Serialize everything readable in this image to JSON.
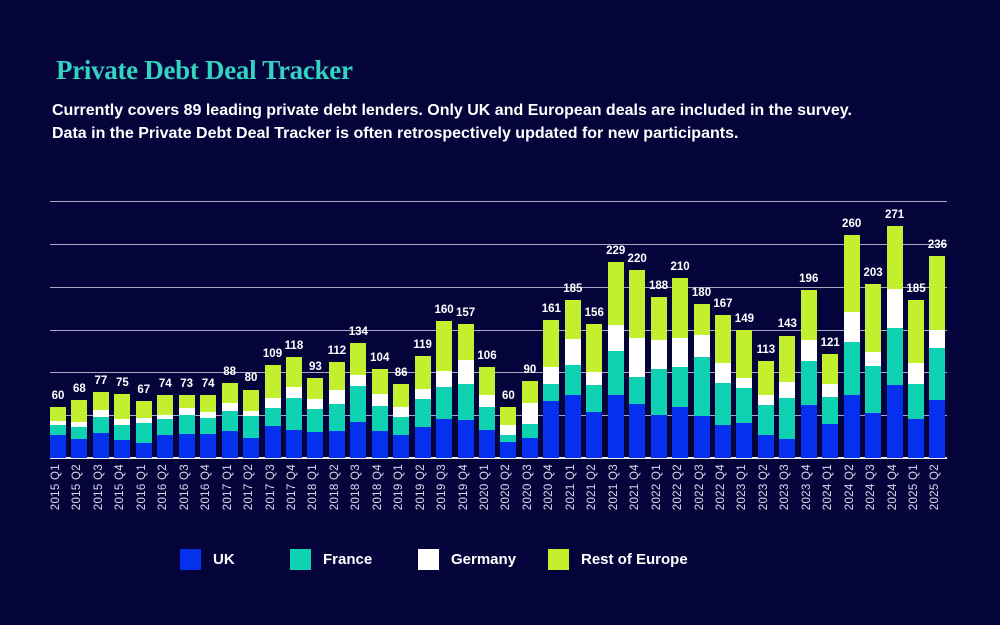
{
  "header": {
    "title": "Private Debt Deal Tracker",
    "subtitle_line1": "Currently covers 89 leading private debt lenders. Only UK and European deals are included in the survey.",
    "subtitle_line2": "Data in the Private Debt Deal Tracker is often retrospectively updated for new participants."
  },
  "colors": {
    "background": "#04043B",
    "title": "#32D4C0",
    "uk": "#0531EE",
    "france": "#0FD2B2",
    "germany": "#FFFFFF",
    "rest_of_europe": "#C3F02E",
    "gridline": "rgba(222,222,242,0.75)",
    "axis_label": "#D9D9EC",
    "value_label": "#FFFFFF"
  },
  "legend": {
    "items": [
      {
        "label": "UK",
        "color": "#0531EE"
      },
      {
        "label": "France",
        "color": "#0FD2B2"
      },
      {
        "label": "Germany",
        "color": "#FFFFFF"
      },
      {
        "label": "Rest of Europe",
        "color": "#C3F02E"
      }
    ]
  },
  "chart_data": {
    "type": "bar",
    "stacked": true,
    "title": "Private Debt Deal Tracker",
    "xlabel": "",
    "ylabel": "",
    "ylim": [
      0,
      300
    ],
    "gridline_step": 50,
    "grid": true,
    "y_axis_labels_visible": false,
    "legend_position": "bottom",
    "categories": [
      "2015 Q1",
      "2015 Q2",
      "2015 Q3",
      "2015 Q4",
      "2016 Q1",
      "2016 Q2",
      "2016 Q3",
      "2016 Q4",
      "2017 Q1",
      "2017 Q2",
      "2017 Q3",
      "2017 Q4",
      "2018 Q1",
      "2018 Q2",
      "2018 Q3",
      "2018 Q4",
      "2019 Q1",
      "2019 Q2",
      "2019 Q3",
      "2019 Q4",
      "2020 Q1",
      "2020 Q2",
      "2020 Q3",
      "2020 Q4",
      "2021 Q1",
      "2021 Q2",
      "2021 Q3",
      "2021 Q4",
      "2022 Q1",
      "2022 Q2",
      "2022 Q3",
      "2022 Q4",
      "2023 Q1",
      "2023 Q2",
      "2023 Q3",
      "2023 Q4",
      "2024 Q1",
      "2024 Q2",
      "2024 Q3",
      "2024 Q4",
      "2025 Q1",
      "2025 Q2"
    ],
    "totals": [
      60,
      68,
      77,
      75,
      67,
      74,
      73,
      74,
      88,
      80,
      109,
      118,
      93,
      112,
      134,
      104,
      86,
      119,
      160,
      157,
      106,
      60,
      90,
      161,
      185,
      156,
      229,
      220,
      188,
      210,
      180,
      167,
      149,
      113,
      143,
      196,
      121,
      260,
      203,
      271,
      185,
      236
    ],
    "series": [
      {
        "name": "UK",
        "color": "#0531EE",
        "values": [
          27,
          22,
          29,
          21,
          17,
          27,
          28,
          28,
          31,
          23,
          37,
          33,
          30,
          31,
          42,
          32,
          27,
          36,
          45,
          44,
          33,
          19,
          23,
          66,
          74,
          54,
          74,
          63,
          50,
          60,
          49,
          39,
          41,
          27,
          22,
          62,
          40,
          74,
          52,
          85,
          45,
          68
        ]
      },
      {
        "name": "France",
        "color": "#0FD2B2",
        "values": [
          11,
          14,
          19,
          18,
          24,
          18,
          22,
          19,
          24,
          26,
          21,
          37,
          27,
          32,
          42,
          29,
          21,
          33,
          38,
          42,
          26,
          8,
          17,
          20,
          34,
          31,
          51,
          32,
          54,
          46,
          69,
          48,
          41,
          35,
          48,
          51,
          31,
          62,
          55,
          67,
          41,
          61
        ]
      },
      {
        "name": "Germany",
        "color": "#FFFFFF",
        "values": [
          5,
          6,
          8,
          7,
          6,
          5,
          8,
          7,
          9,
          6,
          12,
          13,
          12,
          16,
          13,
          14,
          11,
          12,
          19,
          28,
          15,
          12,
          24,
          20,
          31,
          16,
          30,
          45,
          34,
          34,
          26,
          24,
          12,
          12,
          19,
          25,
          15,
          35,
          17,
          45,
          25,
          21
        ]
      },
      {
        "name": "Rest of Europe",
        "color": "#C3F02E",
        "values": [
          17,
          26,
          21,
          29,
          20,
          24,
          15,
          20,
          24,
          25,
          39,
          35,
          24,
          33,
          37,
          29,
          27,
          38,
          58,
          43,
          32,
          21,
          26,
          55,
          46,
          55,
          74,
          80,
          50,
          70,
          36,
          56,
          55,
          39,
          54,
          58,
          35,
          89,
          79,
          74,
          74,
          86
        ]
      }
    ]
  }
}
